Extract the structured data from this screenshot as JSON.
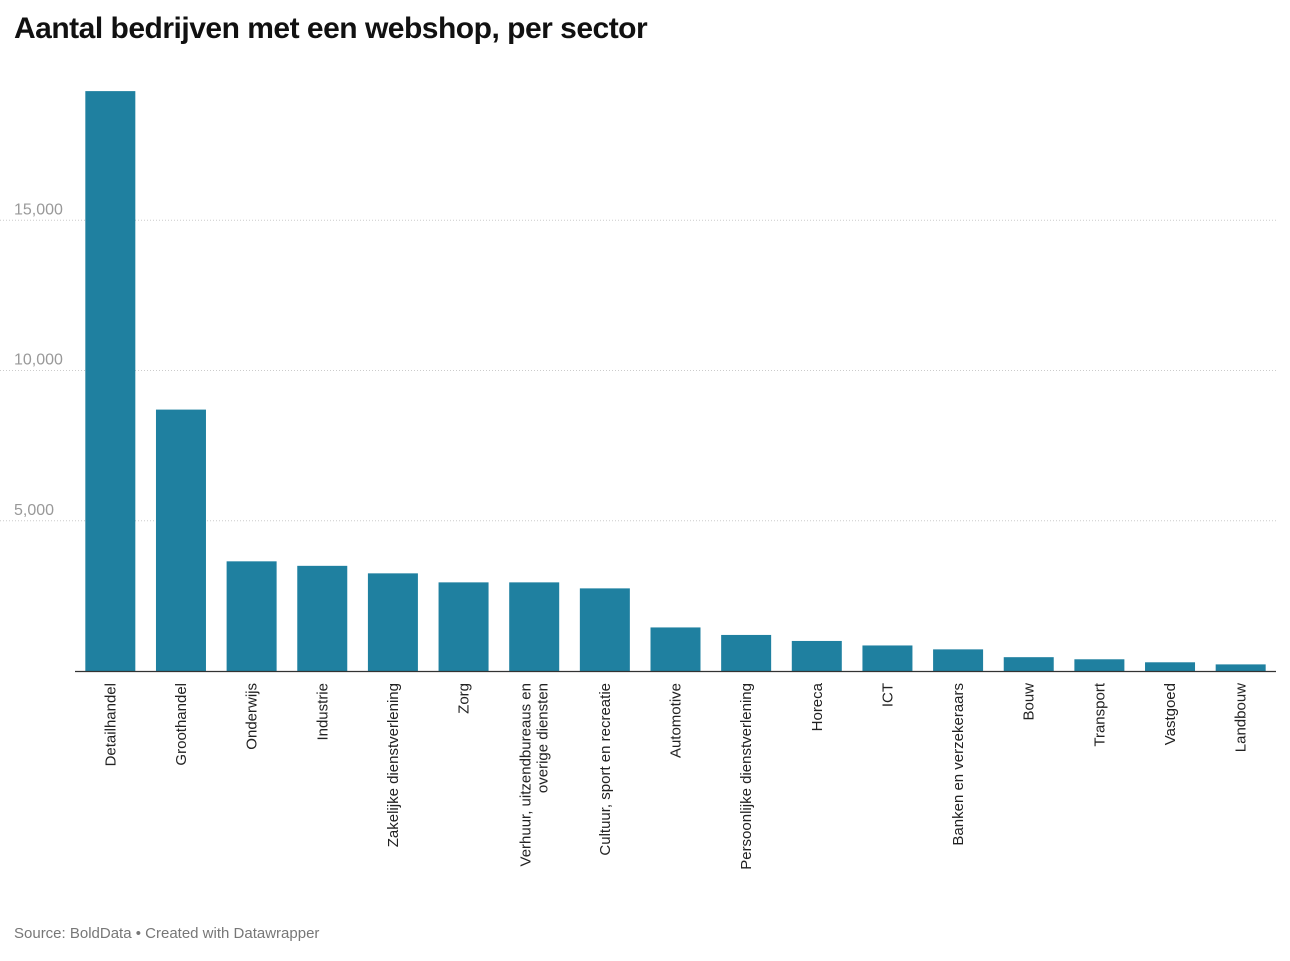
{
  "chart_data": {
    "type": "bar",
    "title": "Aantal bedrijven met een webshop, per sector",
    "xlabel": "",
    "ylabel": "",
    "ylim": [
      0,
      20000
    ],
    "yticks": [
      5000,
      10000,
      15000
    ],
    "ytick_labels": [
      "5,000",
      "10,000",
      "15,000"
    ],
    "grid": true,
    "bar_color": "#1f80a0",
    "categories": [
      [
        "Detailhandel"
      ],
      [
        "Groothandel"
      ],
      [
        "Onderwijs"
      ],
      [
        "Industrie"
      ],
      [
        "Zakelijke dienstverlening"
      ],
      [
        "Zorg"
      ],
      [
        "Verhuur, uitzendbureaus en",
        "overige diensten"
      ],
      [
        "Cultuur, sport en recreatie"
      ],
      [
        "Automotive"
      ],
      [
        "Persoonlijke dienstverlening"
      ],
      [
        "Horeca"
      ],
      [
        "ICT"
      ],
      [
        "Banken en verzekeraars"
      ],
      [
        "Bouw"
      ],
      [
        "Transport"
      ],
      [
        "Vastgoed"
      ],
      [
        "Landbouw"
      ]
    ],
    "values": [
      19300,
      8700,
      3650,
      3500,
      3250,
      2950,
      2950,
      2750,
      1450,
      1200,
      1000,
      850,
      720,
      460,
      390,
      290,
      220
    ]
  },
  "source": "Source: BoldData • Created with Datawrapper"
}
